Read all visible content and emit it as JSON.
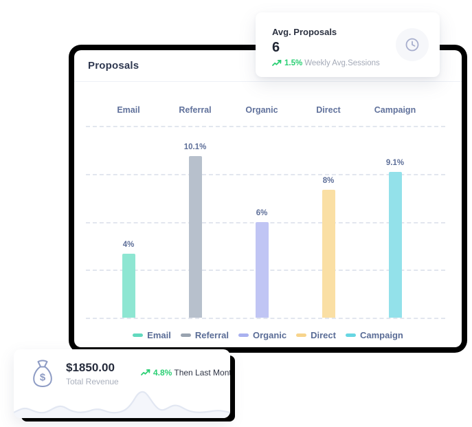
{
  "avg_card": {
    "title": "Avg. Proposals",
    "value": "6",
    "trend_pct": "1.5%",
    "trend_note": "Weekly Avg.Sessions",
    "icon": "clock-icon"
  },
  "main_card": {
    "title": "Proposals"
  },
  "chart_data": {
    "type": "bar",
    "title": "Proposals",
    "categories": [
      "Email",
      "Referral",
      "Organic",
      "Direct",
      "Campaign"
    ],
    "values": [
      4,
      10.1,
      6,
      8,
      9.1
    ],
    "value_labels": [
      "4%",
      "10.1%",
      "6%",
      "8%",
      "9.1%"
    ],
    "bar_colors": [
      "#8ee6d2",
      "#b7c0cc",
      "#c0c5f4",
      "#fadfa4",
      "#93e1ea"
    ],
    "legend_colors": [
      "#62d9be",
      "#99a3b0",
      "#a9b1ef",
      "#f7d48c",
      "#67d6e2"
    ],
    "ylim": [
      0,
      12
    ],
    "grid": "horizontal-dashed",
    "legend_position": "bottom",
    "xlabel": "",
    "ylabel": ""
  },
  "revenue_card": {
    "amount": "$1850.00",
    "label": "Total Revenue",
    "trend_pct": "4.8%",
    "trend_note": "Then Last Month",
    "icon": "money-bag-icon"
  },
  "colors": {
    "trend_green": "#2bcf74",
    "slate_label": "#60719b",
    "title_dark": "#2f3850",
    "grid_dash": "#dde2ec"
  }
}
